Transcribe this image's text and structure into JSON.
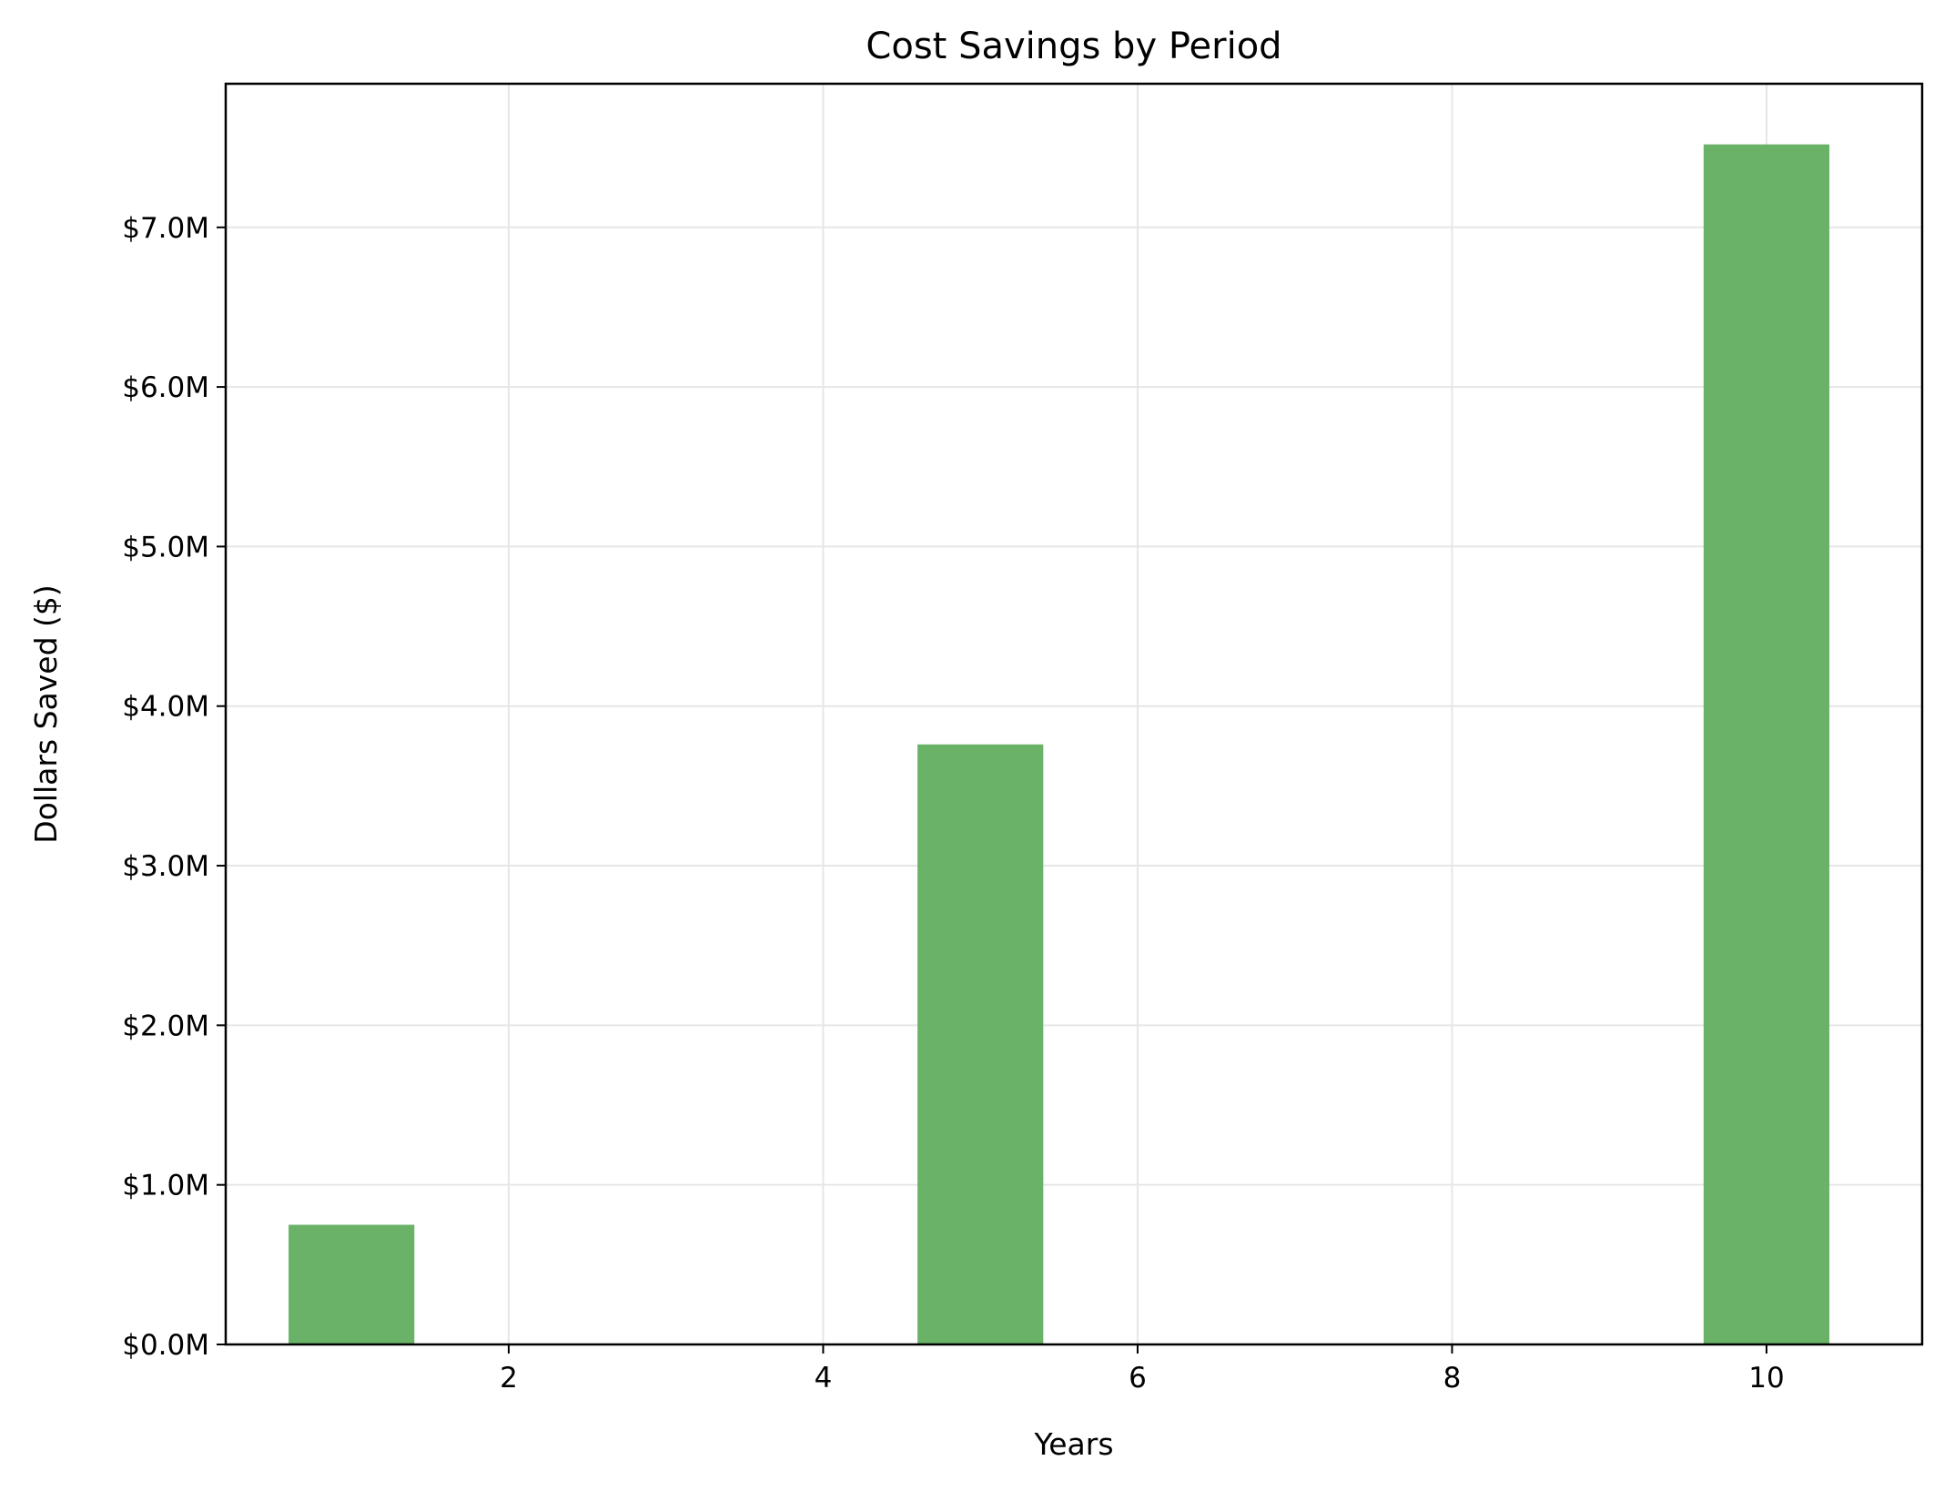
{
  "chart_data": {
    "type": "bar",
    "title": "Cost Savings by Period",
    "xlabel": "Years",
    "ylabel": "Dollars Saved ($)",
    "categories": [
      1,
      5,
      10
    ],
    "values": [
      750000,
      3760000,
      7520000
    ],
    "bar_width": 0.8,
    "bar_color": "#69b267",
    "xlim": [
      0.2,
      10.99
    ],
    "ylim": [
      0,
      7900000
    ],
    "x_ticks": [
      2,
      4,
      6,
      8,
      10
    ],
    "x_tick_labels": [
      "2",
      "4",
      "6",
      "8",
      "10"
    ],
    "y_ticks": [
      0,
      1000000,
      2000000,
      3000000,
      4000000,
      5000000,
      6000000,
      7000000
    ],
    "y_tick_labels": [
      "$0.0M",
      "$1.0M",
      "$2.0M",
      "$3.0M",
      "$4.0M",
      "$5.0M",
      "$6.0M",
      "$7.0M"
    ],
    "grid": true,
    "legend": "none"
  }
}
